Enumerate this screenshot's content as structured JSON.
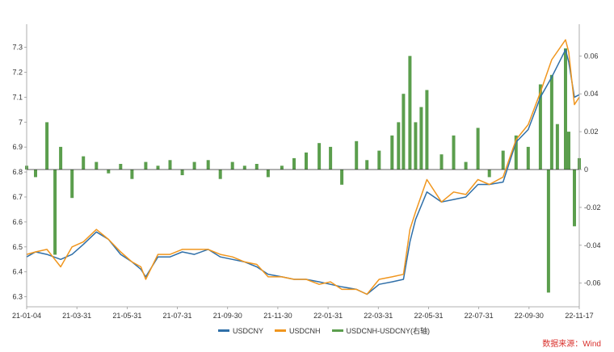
{
  "chart_data": {
    "type": "line",
    "x_tick_labels": [
      "21-01-04",
      "21-03-31",
      "21-05-31",
      "21-07-31",
      "21-09-30",
      "21-11-30",
      "22-01-31",
      "22-03-31",
      "22-05-31",
      "22-07-31",
      "22-09-30",
      "22-11-17"
    ],
    "y_left_ticks": [
      "7.3",
      "7.2",
      "7.1",
      "7",
      "6.9",
      "6.8",
      "6.7",
      "6.6",
      "6.5",
      "6.4",
      "6.3"
    ],
    "y_right_ticks": [
      "0.06",
      "0.04",
      "0.02",
      "0",
      "-0.02",
      "-0.04",
      "-0.06"
    ],
    "ylim_left": [
      6.26,
      7.36
    ],
    "ylim_right": [
      -0.0725,
      0.0725
    ],
    "grid": false,
    "legend_position": "bottom",
    "source_text": "数据来源：Wind",
    "colors": {
      "usdcny": "#2f6fa8",
      "usdcnh": "#f0961e",
      "spread": "#5b9e4d",
      "source": "#d9302c"
    },
    "series": [
      {
        "name": "USDCNY",
        "axis": "left",
        "x": [
          "2021-01-04",
          "2021-01-15",
          "2021-01-29",
          "2021-02-15",
          "2021-03-01",
          "2021-03-15",
          "2021-03-31",
          "2021-04-15",
          "2021-04-30",
          "2021-05-14",
          "2021-05-25",
          "2021-05-31",
          "2021-06-15",
          "2021-06-30",
          "2021-07-15",
          "2021-07-30",
          "2021-08-16",
          "2021-08-31",
          "2021-09-15",
          "2021-09-30",
          "2021-10-15",
          "2021-10-29",
          "2021-11-15",
          "2021-11-30",
          "2021-12-15",
          "2021-12-31",
          "2022-01-14",
          "2022-01-28",
          "2022-02-15",
          "2022-02-28",
          "2022-03-15",
          "2022-03-31",
          "2022-04-14",
          "2022-04-22",
          "2022-04-29",
          "2022-05-13",
          "2022-05-31",
          "2022-06-15",
          "2022-06-30",
          "2022-07-15",
          "2022-07-29",
          "2022-08-15",
          "2022-08-31",
          "2022-09-15",
          "2022-09-30",
          "2022-10-14",
          "2022-10-31",
          "2022-11-04",
          "2022-11-11",
          "2022-11-17"
        ],
        "values": [
          6.46,
          6.48,
          6.47,
          6.45,
          6.47,
          6.51,
          6.56,
          6.53,
          6.47,
          6.44,
          6.41,
          6.38,
          6.46,
          6.46,
          6.48,
          6.47,
          6.49,
          6.46,
          6.45,
          6.44,
          6.42,
          6.39,
          6.38,
          6.37,
          6.37,
          6.36,
          6.35,
          6.34,
          6.33,
          6.31,
          6.35,
          6.36,
          6.37,
          6.52,
          6.61,
          6.72,
          6.68,
          6.69,
          6.7,
          6.75,
          6.75,
          6.76,
          6.92,
          6.97,
          7.1,
          7.18,
          7.29,
          7.24,
          7.1,
          7.11
        ]
      },
      {
        "name": "USDCNH",
        "axis": "left",
        "x": [
          "2021-01-04",
          "2021-01-15",
          "2021-01-29",
          "2021-02-15",
          "2021-03-01",
          "2021-03-15",
          "2021-03-31",
          "2021-04-15",
          "2021-04-30",
          "2021-05-14",
          "2021-05-25",
          "2021-05-31",
          "2021-06-15",
          "2021-06-30",
          "2021-07-15",
          "2021-07-30",
          "2021-08-16",
          "2021-08-31",
          "2021-09-15",
          "2021-09-30",
          "2021-10-15",
          "2021-10-29",
          "2021-11-15",
          "2021-11-30",
          "2021-12-15",
          "2021-12-31",
          "2022-01-14",
          "2022-01-28",
          "2022-02-15",
          "2022-02-28",
          "2022-03-15",
          "2022-03-31",
          "2022-04-14",
          "2022-04-22",
          "2022-04-29",
          "2022-05-13",
          "2022-05-31",
          "2022-06-15",
          "2022-06-30",
          "2022-07-15",
          "2022-07-29",
          "2022-08-15",
          "2022-08-31",
          "2022-09-15",
          "2022-09-30",
          "2022-10-14",
          "2022-10-31",
          "2022-11-04",
          "2022-11-11",
          "2022-11-17"
        ],
        "values": [
          6.47,
          6.48,
          6.49,
          6.42,
          6.5,
          6.52,
          6.57,
          6.53,
          6.48,
          6.44,
          6.42,
          6.37,
          6.47,
          6.47,
          6.49,
          6.49,
          6.49,
          6.47,
          6.46,
          6.44,
          6.43,
          6.38,
          6.38,
          6.37,
          6.37,
          6.35,
          6.36,
          6.33,
          6.33,
          6.31,
          6.37,
          6.38,
          6.39,
          6.57,
          6.64,
          6.77,
          6.68,
          6.72,
          6.71,
          6.77,
          6.75,
          6.78,
          6.93,
          6.99,
          7.12,
          7.25,
          7.33,
          7.28,
          7.07,
          7.1
        ]
      },
      {
        "name": "USDCNH-USDCNY(右轴)",
        "axis": "right",
        "type": "area",
        "x": [
          "2021-01-04",
          "2021-01-15",
          "2021-01-29",
          "2021-02-08",
          "2021-02-15",
          "2021-03-01",
          "2021-03-15",
          "2021-03-31",
          "2021-04-15",
          "2021-04-30",
          "2021-05-14",
          "2021-05-31",
          "2021-06-15",
          "2021-06-30",
          "2021-07-15",
          "2021-07-30",
          "2021-08-16",
          "2021-08-31",
          "2021-09-15",
          "2021-09-30",
          "2021-10-15",
          "2021-10-29",
          "2021-11-15",
          "2021-11-30",
          "2021-12-15",
          "2021-12-31",
          "2022-01-14",
          "2022-01-28",
          "2022-02-15",
          "2022-02-28",
          "2022-03-15",
          "2022-03-31",
          "2022-04-08",
          "2022-04-14",
          "2022-04-22",
          "2022-04-29",
          "2022-05-06",
          "2022-05-13",
          "2022-05-31",
          "2022-06-15",
          "2022-06-30",
          "2022-07-15",
          "2022-07-29",
          "2022-08-15",
          "2022-08-31",
          "2022-09-15",
          "2022-09-30",
          "2022-10-10",
          "2022-10-14",
          "2022-10-21",
          "2022-10-31",
          "2022-11-04",
          "2022-11-11",
          "2022-11-17"
        ],
        "values": [
          0.002,
          -0.004,
          0.025,
          -0.045,
          0.012,
          -0.015,
          0.007,
          0.004,
          -0.002,
          0.003,
          -0.005,
          0.004,
          0.002,
          0.005,
          -0.003,
          0.004,
          0.005,
          -0.005,
          0.004,
          0.002,
          0.003,
          -0.004,
          0.002,
          0.006,
          0.009,
          0.014,
          0.012,
          -0.008,
          0.015,
          0.005,
          0.01,
          0.018,
          0.025,
          0.04,
          0.06,
          0.025,
          0.033,
          0.042,
          0.008,
          0.018,
          0.004,
          0.022,
          -0.004,
          0.01,
          0.018,
          0.012,
          0.045,
          -0.065,
          0.05,
          0.024,
          0.064,
          0.02,
          -0.03,
          0.006
        ]
      }
    ]
  }
}
